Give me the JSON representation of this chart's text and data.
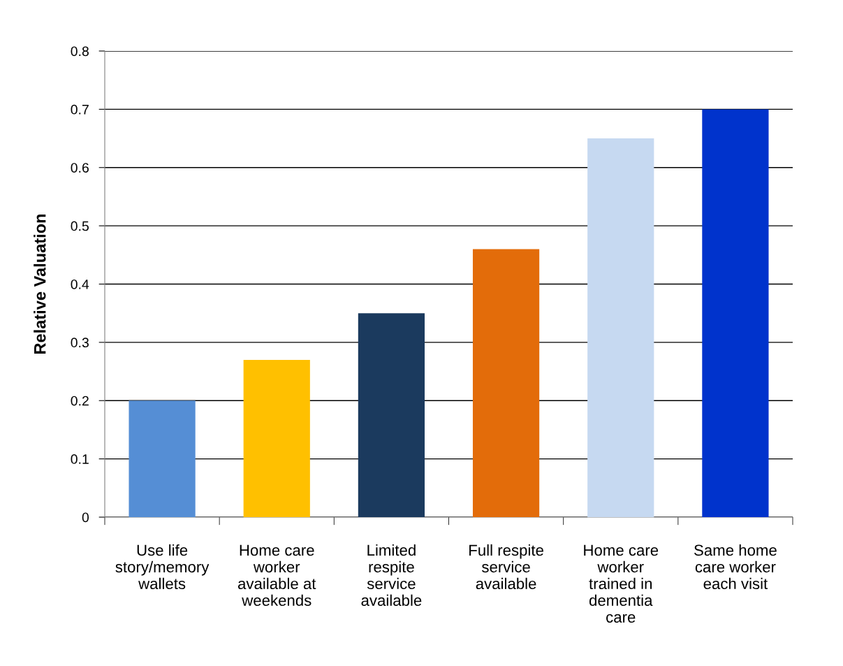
{
  "chart_data": {
    "type": "bar",
    "ylabel": "Relative Valuation",
    "categories": [
      "Use life\nstory/memory\nwallets",
      "Home care\nworker\navailable at\nweekends",
      "Limited\nrespite\nservice\navailable",
      "Full respite\nservice\navailable",
      "Home care\nworker\ntrained in\ndementia\ncare",
      "Same home\ncare worker\neach visit"
    ],
    "values": [
      0.2,
      0.27,
      0.35,
      0.46,
      0.65,
      0.7
    ],
    "colors": [
      "#558ed5",
      "#ffc000",
      "#1b3a5e",
      "#e36c0a",
      "#c6d9f1",
      "#0033cc"
    ],
    "ylim": [
      0,
      0.8
    ],
    "yticks": [
      0,
      0.1,
      0.2,
      0.3,
      0.4,
      0.5,
      0.6,
      0.7,
      0.8
    ],
    "grid": "y",
    "legend": false
  }
}
